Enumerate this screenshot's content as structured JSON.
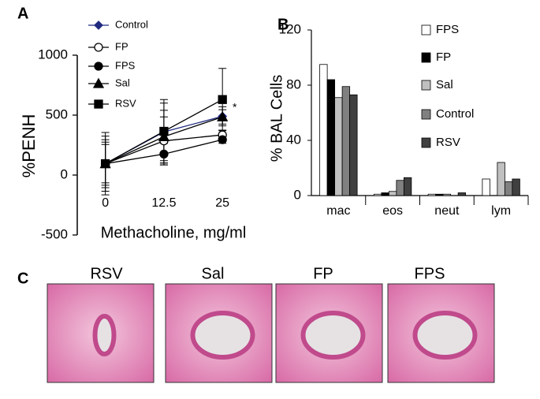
{
  "chart_data": [
    {
      "type": "line",
      "panel_label": "A",
      "xlabel": "Methacholine, mg/ml",
      "ylabel": "%PENH",
      "x": [
        0,
        12.5,
        25
      ],
      "xlim": [
        -6,
        28
      ],
      "ylim": [
        -500,
        1000
      ],
      "yticks": [
        -500,
        0,
        500,
        1000
      ],
      "annotation": "*",
      "series": [
        {
          "name": "Control",
          "color": "#1f2a80",
          "marker": "diamond",
          "values": [
            95,
            360,
            490
          ],
          "errors": [
            230,
            240,
            80
          ]
        },
        {
          "name": "FP",
          "color": "#000000",
          "marker": "open-circle",
          "values": [
            95,
            285,
            335
          ],
          "errors": [
            200,
            200,
            40
          ]
        },
        {
          "name": "FPS",
          "color": "#000000",
          "marker": "circle",
          "values": [
            95,
            175,
            295
          ],
          "errors": [
            160,
            90,
            30
          ]
        },
        {
          "name": "Sal",
          "color": "#000000",
          "marker": "triangle",
          "values": [
            95,
            320,
            485
          ],
          "errors": [
            180,
            220,
            60
          ]
        },
        {
          "name": "RSV",
          "color": "#000000",
          "marker": "square",
          "values": [
            95,
            365,
            630
          ],
          "errors": [
            260,
            265,
            260
          ]
        }
      ]
    },
    {
      "type": "bar",
      "panel_label": "B",
      "ylabel": "% BAL Cells",
      "categories": [
        "mac",
        "eos",
        "neut",
        "lym"
      ],
      "ylim": [
        0,
        120
      ],
      "yticks": [
        0,
        40,
        80,
        120
      ],
      "series": [
        {
          "name": "FPS",
          "color": "#ffffff",
          "values": [
            95,
            1,
            1,
            12
          ]
        },
        {
          "name": "FP",
          "color": "#000000",
          "values": [
            84,
            2,
            1,
            0
          ]
        },
        {
          "name": "Sal",
          "color": "#c0c0c0",
          "values": [
            71,
            3,
            1,
            24
          ]
        },
        {
          "name": "Control",
          "color": "#808080",
          "values": [
            79,
            11,
            0,
            10
          ]
        },
        {
          "name": "RSV",
          "color": "#404040",
          "values": [
            73,
            13,
            2,
            12
          ]
        }
      ]
    }
  ],
  "panel_c": {
    "label": "C",
    "images": [
      "RSV",
      "Sal",
      "FP",
      "FPS"
    ]
  }
}
